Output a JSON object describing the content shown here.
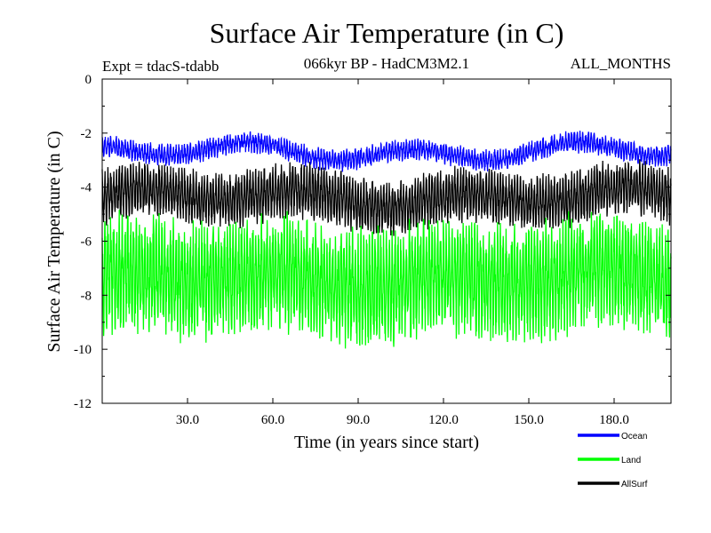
{
  "chart_data": {
    "type": "line",
    "title": "Surface Air Temperature (in C)",
    "subtitle": "066kyr BP - HadCM3M2.1",
    "expt_label": "Expt = tdacS-tdabb",
    "months_label": "ALL_MONTHS",
    "xlabel": "Time (in years since start)",
    "ylabel": "Surface Air Temperature (in C)",
    "xlim": [
      0,
      200
    ],
    "ylim": [
      -12,
      0
    ],
    "x_ticks": [
      30,
      60,
      90,
      120,
      150,
      180
    ],
    "x_tick_labels": [
      "30.0",
      "60.0",
      "90.0",
      "120.0",
      "150.0",
      "180.0"
    ],
    "y_ticks": [
      0,
      -2,
      -4,
      -6,
      -8,
      -10,
      -12
    ],
    "y_tick_labels": [
      "0",
      "-2",
      "-4",
      "-6",
      "-8",
      "-10",
      "-12"
    ],
    "samples_per_year": 12,
    "series": [
      {
        "name": "AllSurf",
        "color": "#000000",
        "mean": -4.4,
        "amplitude": 0.75,
        "noise": 0.35
      },
      {
        "name": "Land",
        "color": "#00ff00",
        "mean": -7.4,
        "amplitude": 1.6,
        "noise": 0.75
      },
      {
        "name": "Ocean",
        "color": "#0000ff",
        "mean": -2.7,
        "amplitude": 0.25,
        "noise": 0.18
      }
    ],
    "legend": [
      {
        "name": "Ocean",
        "color": "#0000ff"
      },
      {
        "name": "Land",
        "color": "#00ff00"
      },
      {
        "name": "AllSurf",
        "color": "#000000"
      }
    ]
  }
}
